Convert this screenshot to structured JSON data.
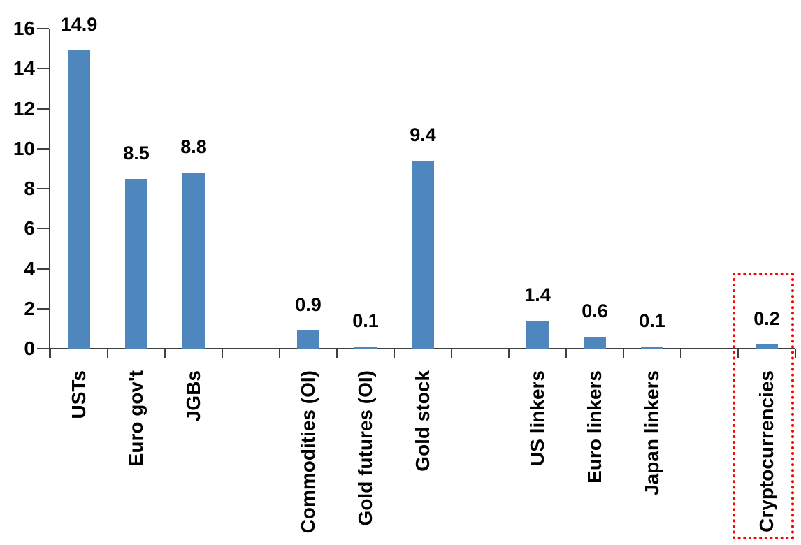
{
  "chart_data": {
    "type": "bar",
    "title": "",
    "xlabel": "",
    "ylabel": "",
    "categories": [
      "USTs",
      "Euro gov't",
      "JGBs",
      "",
      "Commodities (OI)",
      "Gold futures (OI)",
      "Gold stock",
      "",
      "US linkers",
      "Euro linkers",
      "Japan linkers",
      "",
      "Cryptocurrencies"
    ],
    "values": [
      14.9,
      8.5,
      8.8,
      null,
      0.9,
      0.1,
      9.4,
      null,
      1.4,
      0.6,
      0.1,
      null,
      0.2
    ],
    "value_labels": [
      "14.9",
      "8.5",
      "8.8",
      "",
      "0.9",
      "0.1",
      "9.4",
      "",
      "1.4",
      "0.6",
      "0.1",
      "",
      "0.2"
    ],
    "ylim": [
      0,
      16
    ],
    "yticks": [
      0,
      2,
      4,
      6,
      8,
      10,
      12,
      14,
      16
    ],
    "grid": false,
    "legend": null,
    "bar_color": "#4E87BE",
    "axis_color": "#3F3F3F",
    "text_color": "#000000",
    "highlight": {
      "category": "Cryptocurrencies",
      "style": "dotted-box",
      "color": "#FF0000"
    }
  }
}
